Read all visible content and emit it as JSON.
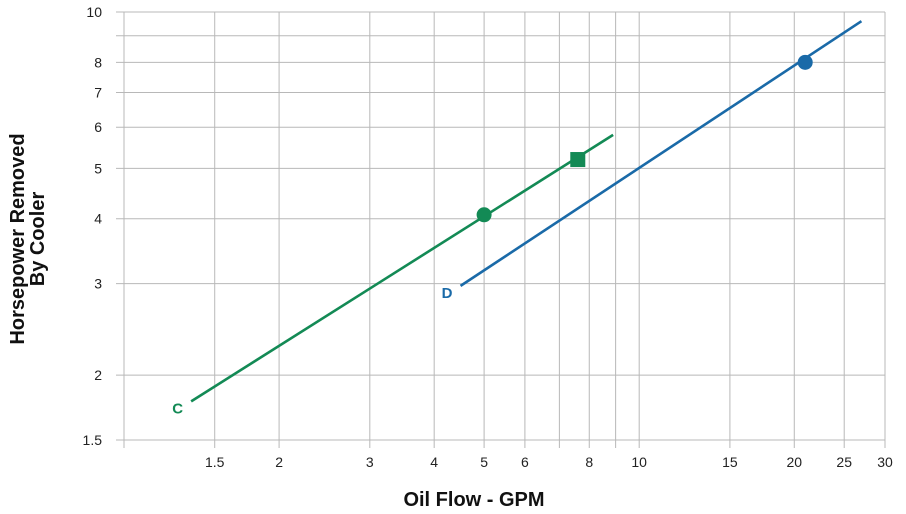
{
  "chart_data": {
    "type": "line",
    "title": "",
    "xlabel": "Oil Flow - GPM",
    "ylabel_lines": [
      "Horsepower Removed",
      "By Cooler"
    ],
    "x_scale": "log",
    "y_scale": "log",
    "xlim": [
      1.0,
      30
    ],
    "ylim": [
      1.5,
      10
    ],
    "grid": true,
    "x_gridlines": [
      1.0,
      1.5,
      2,
      3,
      4,
      5,
      6,
      7,
      8,
      9,
      10,
      15,
      20,
      25,
      30
    ],
    "y_gridlines": [
      1.5,
      2,
      3,
      4,
      5,
      6,
      7,
      8,
      9,
      10
    ],
    "x_ticks": [
      {
        "v": 1.5,
        "label": "1.5"
      },
      {
        "v": 2,
        "label": "2"
      },
      {
        "v": 3,
        "label": "3"
      },
      {
        "v": 4,
        "label": "4"
      },
      {
        "v": 5,
        "label": "5"
      },
      {
        "v": 6,
        "label": "6"
      },
      {
        "v": 8,
        "label": "8"
      },
      {
        "v": 10,
        "label": "10"
      },
      {
        "v": 15,
        "label": "15"
      },
      {
        "v": 20,
        "label": "20"
      },
      {
        "v": 25,
        "label": "25"
      },
      {
        "v": 30,
        "label": "30"
      }
    ],
    "y_ticks": [
      {
        "v": 1.5,
        "label": "1.5"
      },
      {
        "v": 2,
        "label": "2"
      },
      {
        "v": 3,
        "label": "3"
      },
      {
        "v": 4,
        "label": "4"
      },
      {
        "v": 5,
        "label": "5"
      },
      {
        "v": 6,
        "label": "6"
      },
      {
        "v": 7,
        "label": "7"
      },
      {
        "v": 8,
        "label": "8"
      },
      {
        "v": 10,
        "label": "10"
      }
    ],
    "series": [
      {
        "name": "C",
        "color": "#138a55",
        "x": [
          1.35,
          8.9
        ],
        "y": [
          1.78,
          5.8
        ],
        "label_at": {
          "x": 1.35,
          "y": 1.78
        },
        "markers": [
          {
            "x": 5.0,
            "y": 4.07,
            "shape": "circle"
          },
          {
            "x": 7.6,
            "y": 5.2,
            "shape": "square"
          }
        ]
      },
      {
        "name": "D",
        "color": "#1a6aa8",
        "x": [
          4.5,
          27
        ],
        "y": [
          2.97,
          9.6
        ],
        "label_at": {
          "x": 4.5,
          "y": 2.97
        },
        "markers": [
          {
            "x": 21,
            "y": 8.0,
            "shape": "circle"
          }
        ]
      }
    ]
  }
}
